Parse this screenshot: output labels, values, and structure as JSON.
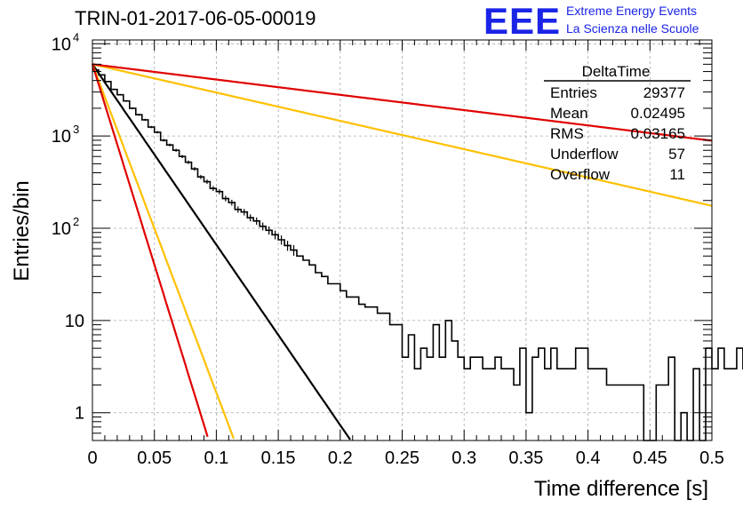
{
  "header": {
    "title": "TRIN-01-2017-06-05-00019",
    "logo_text": "EEE",
    "logo_line1": "Extreme Energy Events",
    "logo_line2": "La Scienza nelle Scuole"
  },
  "stats_box": {
    "name": "DeltaTime",
    "rows": [
      {
        "label": "Entries",
        "value": "29377"
      },
      {
        "label": "Mean",
        "value": "0.02495"
      },
      {
        "label": "RMS",
        "value": "0.03165"
      },
      {
        "label": "Underflow",
        "value": "57"
      },
      {
        "label": "Overflow",
        "value": "11"
      }
    ]
  },
  "chart_data": {
    "type": "histogram",
    "xlabel": "Time difference [s]",
    "ylabel": "Entries/bin",
    "xlim": [
      0,
      0.5
    ],
    "ylim": [
      0.5,
      11000
    ],
    "y_scale": "log",
    "grid": true,
    "x_ticks": [
      "0",
      "0.05",
      "0.1",
      "0.15",
      "0.2",
      "0.25",
      "0.3",
      "0.35",
      "0.4",
      "0.45",
      "0.5"
    ],
    "y_ticks": [
      "1",
      "10",
      "10^2",
      "10^3",
      "10^4"
    ],
    "bin_width": 0.005,
    "histogram_values": [
      5200,
      4600,
      3900,
      3200,
      2800,
      2400,
      2000,
      1700,
      1500,
      1250,
      1100,
      900,
      800,
      700,
      600,
      520,
      440,
      360,
      320,
      270,
      250,
      210,
      190,
      160,
      150,
      130,
      120,
      105,
      95,
      85,
      75,
      65,
      58,
      50,
      45,
      40,
      33,
      30,
      25,
      25,
      21,
      18,
      18,
      15,
      14,
      14,
      12,
      12,
      9,
      9,
      4,
      7,
      3,
      5,
      4,
      9,
      4,
      10,
      6,
      4,
      3,
      4,
      4,
      3,
      3,
      4,
      3,
      3,
      2,
      5,
      1,
      4,
      5,
      3,
      5,
      3,
      3,
      3,
      5,
      5,
      3,
      3,
      3,
      2,
      2,
      2,
      2,
      2,
      2,
      0.5,
      0.5,
      2,
      2,
      4,
      0.5,
      1,
      0.5,
      3,
      0.5,
      5,
      3,
      5,
      3,
      3,
      5,
      3,
      5,
      3,
      3,
      0.5,
      0.5,
      0.5,
      0.5,
      0.5,
      2,
      2,
      2,
      2,
      0.5,
      2,
      0.5,
      3,
      3,
      0.5,
      3,
      2,
      0.5,
      2,
      0.5,
      2,
      0.5,
      2,
      0.5,
      2,
      0.5,
      2,
      0.5,
      1,
      2,
      0.5,
      1,
      2,
      1,
      1,
      1,
      1,
      1,
      2,
      1,
      1,
      2,
      2,
      2,
      2,
      1,
      1
    ],
    "fits": [
      {
        "color": "#000000",
        "a": 6000,
        "tau": 0.0222
      },
      {
        "color": "#ffc000",
        "a": 6000,
        "tau": 0.0122
      },
      {
        "color": "#e00000",
        "a": 6000,
        "tau": 0.01
      },
      {
        "color": "#ffc000",
        "a": 6000,
        "tau": 0.1415
      },
      {
        "color": "#e00000",
        "a": 6000,
        "tau": 0.262
      }
    ]
  }
}
